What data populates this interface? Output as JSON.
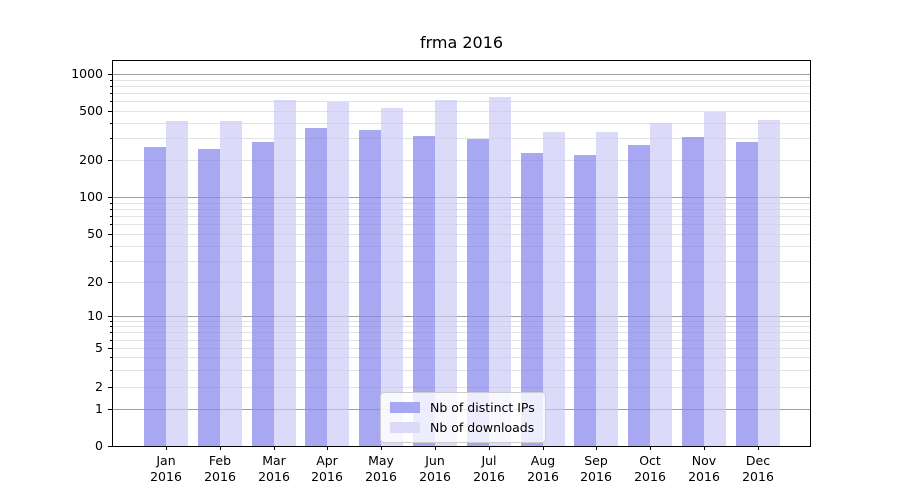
{
  "chart_data": {
    "type": "bar",
    "title": "frma 2016",
    "y_scale": "log-like (symlog), values 0 to ~1250",
    "grid": "horizontal, log major and minor lines",
    "legend_position": "inside plot, lower center",
    "categories": [
      "Jan 2016",
      "Feb 2016",
      "Mar 2016",
      "Apr 2016",
      "May 2016",
      "Jun 2016",
      "Jul 2016",
      "Aug 2016",
      "Sep 2016",
      "Oct 2016",
      "Nov 2016",
      "Dec 2016"
    ],
    "series": [
      {
        "name": "Nb of distinct IPs",
        "color": "#a7a7f2",
        "values": [
          255,
          245,
          280,
          365,
          350,
          315,
          295,
          230,
          220,
          265,
          310,
          280
        ]
      },
      {
        "name": "Nb of downloads",
        "color": "#dbdbf9",
        "values": [
          415,
          415,
          610,
          590,
          530,
          610,
          650,
          340,
          335,
          400,
          490,
          425
        ]
      }
    ],
    "y_ticks": [
      {
        "label": "1000",
        "value": 1000
      },
      {
        "label": "500",
        "value": 500
      },
      {
        "label": "200",
        "value": 200
      },
      {
        "label": "100",
        "value": 100
      },
      {
        "label": "50",
        "value": 50
      },
      {
        "label": "20",
        "value": 20
      },
      {
        "label": "10",
        "value": 10
      },
      {
        "label": "5",
        "value": 5
      },
      {
        "label": "2",
        "value": 2
      },
      {
        "label": "1",
        "value": 1
      },
      {
        "label": "0",
        "value": 0
      }
    ]
  }
}
